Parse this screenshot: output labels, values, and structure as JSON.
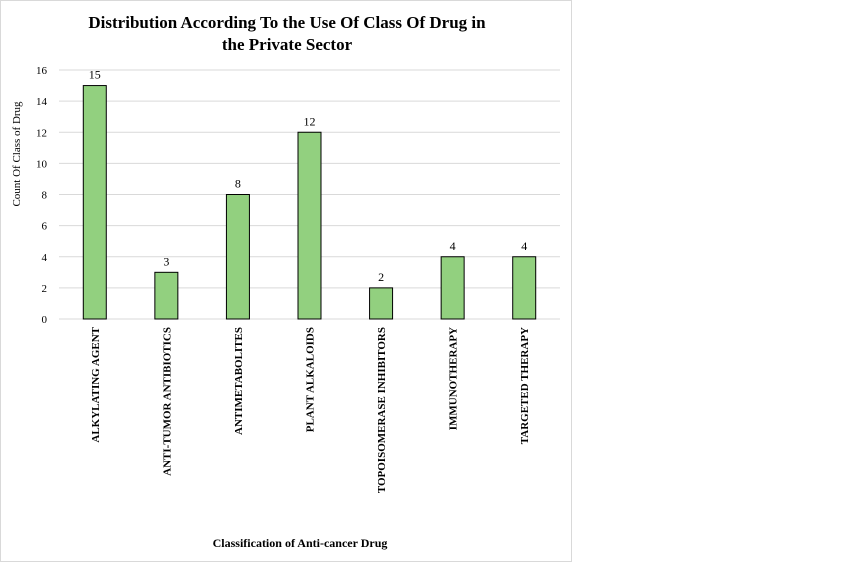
{
  "chart_data": {
    "type": "bar",
    "title_lines": [
      "Distribution According To the Use Of Class Of Drug  in",
      "the Private Sector"
    ],
    "xlabel": "Classification of Anti-cancer  Drug",
    "ylabel": "Count Of Class of Drug",
    "categories": [
      "ALKYLATING  AGENT",
      "ANTI-TUMOR ANTIBIOTICS",
      "ANTIMETABOLITES",
      "PLANT  ALKALOIDS",
      "TOPOISOMERASE INHIBITORS",
      "IMMUNOTHERAPY",
      "TARGETED  THERAPY"
    ],
    "values": [
      15,
      3,
      8,
      12,
      2,
      4,
      4
    ],
    "ylim": [
      0,
      16
    ],
    "yticks": [
      0,
      2,
      4,
      6,
      8,
      10,
      12,
      14,
      16
    ],
    "grid": true,
    "legend": "none",
    "bar_color": "#92d07f",
    "bar_edge_color": "#000000",
    "grid_color": "#d9d9d9"
  }
}
